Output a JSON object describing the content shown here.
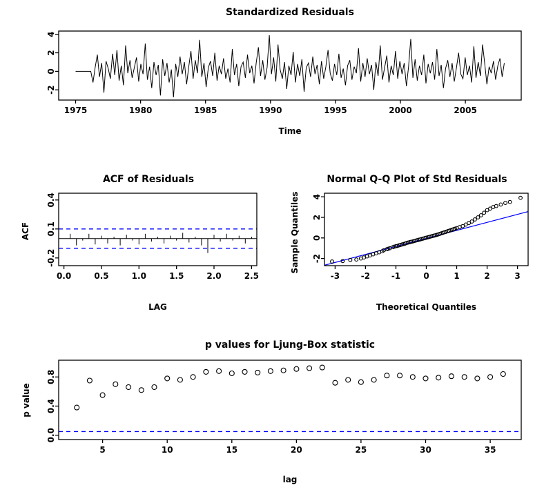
{
  "page": {
    "background": "#ffffff"
  },
  "colors": {
    "series": "#000000",
    "reference": "#0000ff",
    "axis": "#000000"
  },
  "chart_data": [
    {
      "id": "standardized-residuals",
      "type": "line",
      "title": "Standardized Residuals",
      "xlabel": "Time",
      "ylabel": "",
      "xlim": [
        1973.7,
        2009.3
      ],
      "ylim": [
        -3.1,
        4.35
      ],
      "xticks": [
        1975,
        1980,
        1985,
        1990,
        1995,
        2000,
        2005
      ],
      "xtick_labels": [
        "1975",
        "1980",
        "1985",
        "1990",
        "1995",
        "2000",
        "2005"
      ],
      "yticks": [
        -2,
        0,
        2,
        4
      ],
      "ytick_labels": [
        "-2",
        "0",
        "2",
        "4"
      ],
      "x_start": 1975,
      "x_end": 2008,
      "values": [
        0,
        0,
        0,
        0,
        0,
        0,
        0,
        0,
        -1.2,
        0.4,
        1.8,
        -0.6,
        0.9,
        -2.3,
        1.1,
        0.3,
        -0.8,
        1.9,
        -0.4,
        2.3,
        -1.0,
        0.6,
        -1.5,
        2.8,
        -0.2,
        1.2,
        -0.7,
        0.4,
        1.5,
        -1.1,
        0.8,
        -0.3,
        3.0,
        -0.9,
        0.5,
        -1.8,
        1.0,
        -0.4,
        0.7,
        -2.6,
        1.3,
        -0.5,
        0.9,
        -1.2,
        0.2,
        -2.8,
        0.8,
        -0.6,
        1.6,
        -0.3,
        1.0,
        -1.4,
        0.5,
        2.2,
        -0.8,
        1.2,
        -0.2,
        3.4,
        -0.6,
        0.9,
        -1.7,
        0.4,
        1.1,
        -0.5,
        2.0,
        -1.0,
        0.6,
        -0.3,
        1.4,
        -0.8,
        0.3,
        -1.2,
        2.4,
        -0.4,
        0.8,
        -1.6,
        0.5,
        1.0,
        -0.7,
        1.8,
        -0.2,
        0.6,
        -1.3,
        0.9,
        2.6,
        -0.5,
        1.2,
        -0.9,
        0.4,
        3.9,
        -0.3,
        1.5,
        -1.1,
        2.9,
        0.2,
        -0.8,
        1.0,
        -1.9,
        0.6,
        -0.4,
        2.1,
        -1.2,
        0.8,
        -0.5,
        1.3,
        -2.2,
        0.4,
        0.9,
        -0.6,
        1.6,
        -0.3,
        0.7,
        -1.4,
        1.1,
        -0.8,
        0.5,
        2.3,
        -0.2,
        -1.0,
        0.8,
        -0.4,
        1.9,
        -0.7,
        0.3,
        -1.5,
        0.6,
        1.2,
        -0.9,
        0.5,
        -0.2,
        2.5,
        -1.1,
        0.9,
        -0.6,
        1.4,
        -0.3,
        0.7,
        -2.0,
        1.0,
        -0.5,
        2.8,
        -0.9,
        0.4,
        1.7,
        -1.2,
        0.6,
        -0.4,
        2.2,
        -0.8,
        1.1,
        -0.3,
        0.9,
        -1.6,
        0.5,
        3.5,
        -0.7,
        1.3,
        -1.0,
        0.6,
        -0.4,
        1.8,
        -1.3,
        0.8,
        -0.2,
        1.0,
        -0.9,
        2.4,
        -0.5,
        0.7,
        -1.8,
        0.3,
        1.2,
        -0.6,
        0.9,
        -1.1,
        0.4,
        2.0,
        -0.3,
        -0.8,
        1.5,
        -0.4,
        0.6,
        -1.2,
        2.7,
        -0.7,
        1.0,
        -0.5,
        2.9,
        0.8,
        -1.4,
        0.5,
        -0.2,
        1.1,
        -0.9,
        0.6,
        1.4,
        -0.6,
        0.9
      ]
    },
    {
      "id": "acf-of-residuals",
      "type": "spikes",
      "title": "ACF of Residuals",
      "xlabel": "LAG",
      "ylabel": "ACF",
      "xlim": [
        -0.07,
        2.57
      ],
      "ylim": [
        -0.28,
        0.47
      ],
      "xticks": [
        0.0,
        0.5,
        1.0,
        1.5,
        2.0,
        2.5
      ],
      "xtick_labels": [
        "0.0",
        "0.5",
        "1.0",
        "1.5",
        "2.0",
        "2.5"
      ],
      "yticks": [
        -0.2,
        0.1,
        0.4
      ],
      "ytick_labels": [
        "-0.2",
        "0.1",
        "0.4"
      ],
      "lag_step": 0.083333,
      "conf_band": 0.1,
      "values": [
        0.05,
        -0.07,
        -0.02,
        0.05,
        -0.06,
        0.03,
        -0.05,
        0.02,
        -0.07,
        0.04,
        -0.02,
        -0.06,
        0.05,
        -0.03,
        0.02,
        -0.05,
        0.03,
        -0.02,
        0.06,
        -0.04,
        0.02,
        -0.07,
        -0.15,
        0.04,
        -0.03,
        0.05,
        -0.02,
        0.03,
        -0.05,
        0.02
      ]
    },
    {
      "id": "normal-qq-plot",
      "type": "scatter",
      "title": "Normal Q-Q Plot of Std Residuals",
      "xlabel": "Theoretical Quantiles",
      "ylabel": "Sample Quantiles",
      "xlim": [
        -3.35,
        3.35
      ],
      "ylim": [
        -2.7,
        4.35
      ],
      "xticks": [
        -3,
        -2,
        -1,
        0,
        1,
        2,
        3
      ],
      "xtick_labels": [
        "-3",
        "-2",
        "-1",
        "0",
        "1",
        "2",
        "3"
      ],
      "yticks": [
        -2,
        0,
        2,
        4
      ],
      "ytick_labels": [
        "-2",
        "0",
        "2",
        "4"
      ],
      "point_radius": 2.4,
      "line": {
        "slope": 0.78,
        "intercept": -0.05
      },
      "points": [
        [
          -3.1,
          -2.3
        ],
        [
          -2.75,
          -2.25
        ],
        [
          -2.5,
          -2.15
        ],
        [
          -2.3,
          -2.1
        ],
        [
          -2.15,
          -2.0
        ],
        [
          -2.05,
          -1.9
        ],
        [
          -1.95,
          -1.8
        ],
        [
          -1.85,
          -1.7
        ],
        [
          -1.75,
          -1.6
        ],
        [
          -1.65,
          -1.5
        ],
        [
          -1.55,
          -1.4
        ],
        [
          -1.45,
          -1.3
        ],
        [
          -1.4,
          -1.2
        ],
        [
          -1.3,
          -1.1
        ],
        [
          -1.25,
          -1.05
        ],
        [
          -1.2,
          -1.0
        ],
        [
          -1.1,
          -0.9
        ],
        [
          -1.05,
          -0.85
        ],
        [
          -1.0,
          -0.8
        ],
        [
          -0.95,
          -0.78
        ],
        [
          -0.9,
          -0.72
        ],
        [
          -0.85,
          -0.68
        ],
        [
          -0.8,
          -0.64
        ],
        [
          -0.75,
          -0.6
        ],
        [
          -0.7,
          -0.55
        ],
        [
          -0.65,
          -0.5
        ],
        [
          -0.6,
          -0.46
        ],
        [
          -0.55,
          -0.42
        ],
        [
          -0.5,
          -0.38
        ],
        [
          -0.45,
          -0.34
        ],
        [
          -0.4,
          -0.3
        ],
        [
          -0.35,
          -0.26
        ],
        [
          -0.3,
          -0.22
        ],
        [
          -0.25,
          -0.18
        ],
        [
          -0.2,
          -0.14
        ],
        [
          -0.15,
          -0.1
        ],
        [
          -0.1,
          -0.06
        ],
        [
          -0.05,
          -0.02
        ],
        [
          0.0,
          0.02
        ],
        [
          0.05,
          0.06
        ],
        [
          0.1,
          0.1
        ],
        [
          0.15,
          0.14
        ],
        [
          0.2,
          0.18
        ],
        [
          0.25,
          0.22
        ],
        [
          0.3,
          0.26
        ],
        [
          0.35,
          0.3
        ],
        [
          0.4,
          0.35
        ],
        [
          0.45,
          0.4
        ],
        [
          0.5,
          0.45
        ],
        [
          0.55,
          0.5
        ],
        [
          0.6,
          0.55
        ],
        [
          0.65,
          0.6
        ],
        [
          0.7,
          0.65
        ],
        [
          0.75,
          0.7
        ],
        [
          0.8,
          0.75
        ],
        [
          0.85,
          0.8
        ],
        [
          0.9,
          0.85
        ],
        [
          0.95,
          0.9
        ],
        [
          1.0,
          0.95
        ],
        [
          1.1,
          1.05
        ],
        [
          1.2,
          1.15
        ],
        [
          1.3,
          1.3
        ],
        [
          1.4,
          1.45
        ],
        [
          1.5,
          1.6
        ],
        [
          1.6,
          1.8
        ],
        [
          1.7,
          2.0
        ],
        [
          1.8,
          2.2
        ],
        [
          1.9,
          2.45
        ],
        [
          2.0,
          2.7
        ],
        [
          2.1,
          2.85
        ],
        [
          2.2,
          3.0
        ],
        [
          2.3,
          3.1
        ],
        [
          2.45,
          3.25
        ],
        [
          2.6,
          3.4
        ],
        [
          2.75,
          3.5
        ],
        [
          3.1,
          3.9
        ]
      ]
    },
    {
      "id": "ljung-box-p-values",
      "type": "scatter",
      "title": "p values for Ljung-Box statistic",
      "xlabel": "lag",
      "ylabel": "p value",
      "xlim": [
        1.6,
        37.4
      ],
      "ylim": [
        -0.06,
        1.03
      ],
      "xticks": [
        5,
        10,
        15,
        20,
        25,
        30,
        35
      ],
      "xtick_labels": [
        "5",
        "10",
        "15",
        "20",
        "25",
        "30",
        "35"
      ],
      "yticks": [
        0.0,
        0.4,
        0.8
      ],
      "ytick_labels": [
        "0.0",
        "0.4",
        "0.8"
      ],
      "point_radius": 3.5,
      "hline": 0.05,
      "points": [
        [
          3,
          0.38
        ],
        [
          4,
          0.75
        ],
        [
          5,
          0.55
        ],
        [
          6,
          0.7
        ],
        [
          7,
          0.66
        ],
        [
          8,
          0.62
        ],
        [
          9,
          0.66
        ],
        [
          10,
          0.78
        ],
        [
          11,
          0.76
        ],
        [
          12,
          0.8
        ],
        [
          13,
          0.87
        ],
        [
          14,
          0.88
        ],
        [
          15,
          0.85
        ],
        [
          16,
          0.87
        ],
        [
          17,
          0.86
        ],
        [
          18,
          0.88
        ],
        [
          19,
          0.89
        ],
        [
          20,
          0.91
        ],
        [
          21,
          0.92
        ],
        [
          22,
          0.93
        ],
        [
          23,
          0.72
        ],
        [
          24,
          0.76
        ],
        [
          25,
          0.73
        ],
        [
          26,
          0.76
        ],
        [
          27,
          0.82
        ],
        [
          28,
          0.82
        ],
        [
          29,
          0.8
        ],
        [
          30,
          0.78
        ],
        [
          31,
          0.79
        ],
        [
          32,
          0.81
        ],
        [
          33,
          0.8
        ],
        [
          34,
          0.78
        ],
        [
          35,
          0.8
        ],
        [
          36,
          0.84
        ]
      ]
    }
  ]
}
